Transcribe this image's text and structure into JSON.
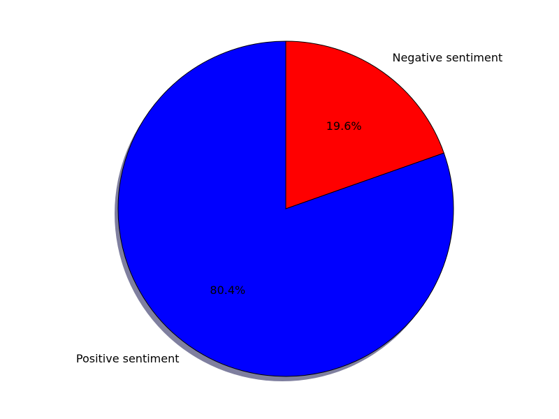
{
  "chart_data": {
    "type": "pie",
    "title": "",
    "start_angle_deg": 90,
    "shadow": true,
    "slices": [
      {
        "label": "Negative sentiment",
        "value": 19.6,
        "pct_label": "19.6%",
        "color": "#ff0000"
      },
      {
        "label": "Positive sentiment",
        "value": 80.4,
        "pct_label": "80.4%",
        "color": "#0000ff"
      }
    ],
    "edge_color": "#000000",
    "shadow_color": "#7f7f9f"
  }
}
